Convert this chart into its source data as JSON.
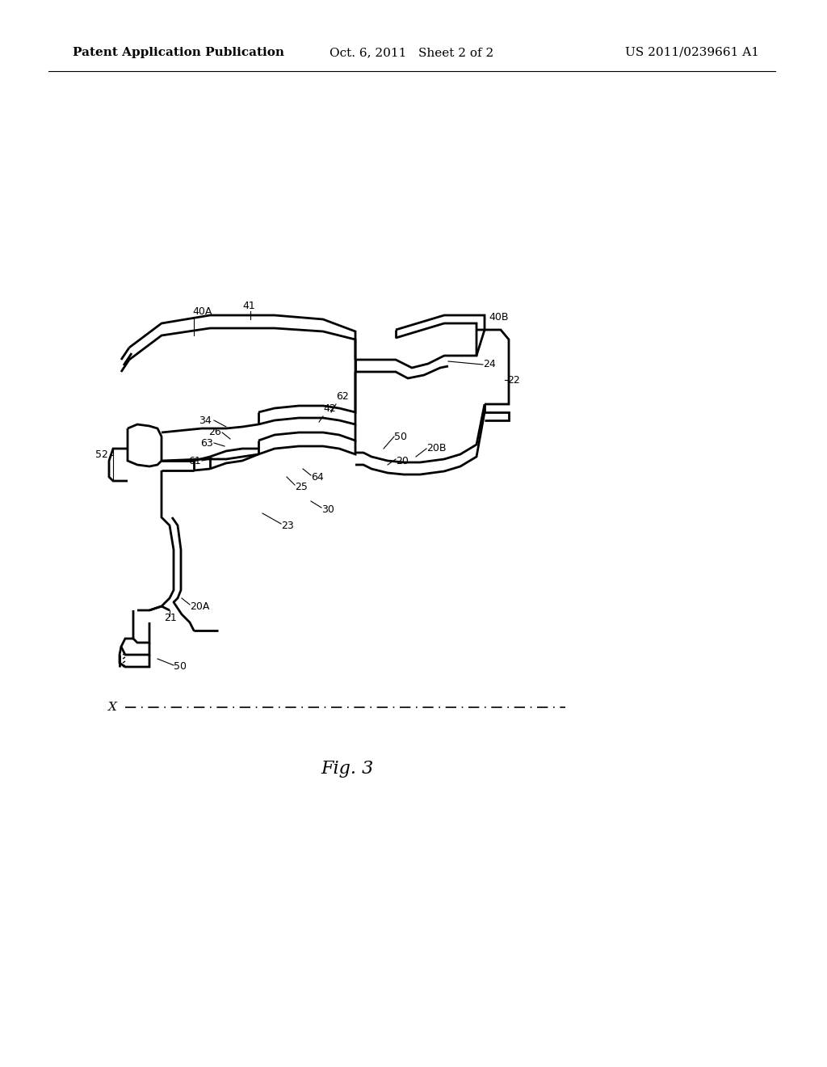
{
  "title_left": "Patent Application Publication",
  "title_center": "Oct. 6, 2011   Sheet 2 of 2",
  "title_right": "US 2011/0239661 A1",
  "fig_label": "Fig. 3",
  "axis_label": "X",
  "background_color": "#ffffff",
  "line_color": "#000000",
  "line_width": 1.5,
  "header_fontsize": 11,
  "fig_label_fontsize": 16,
  "axis_label_fontsize": 12
}
